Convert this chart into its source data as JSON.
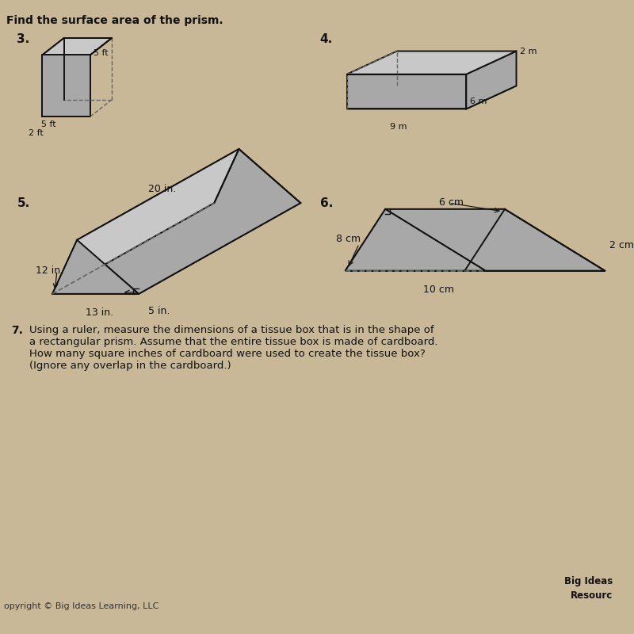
{
  "bg_color": "#c8b898",
  "title": "Find the surface area of the prism.",
  "prob3_label": "3.",
  "prob3_dims": [
    "5 ft",
    "5 ft",
    "2 ft"
  ],
  "prob4_label": "4.",
  "prob4_dims": [
    "2 m",
    "6 m",
    "9 m"
  ],
  "prob5_label": "5.",
  "prob5_dims": [
    "12 in.",
    "20 in.",
    "5 in.",
    "13 in."
  ],
  "prob6_label": "6.",
  "prob6_dims": [
    "8 cm",
    "6 cm",
    "2 cm",
    "10 cm"
  ],
  "prob7_label": "7.",
  "prob7_text": "Using a ruler, measure the dimensions of a tissue box that is in the shape of\na rectangular prism. Assume that the entire tissue box is made of cardboard.\nHow many square inches of cardboard were used to create the tissue box?\n(Ignore any overlap in the cardboard.)",
  "footer_left": "opyright © Big Ideas Learning, LLC",
  "footer_right": "Big Ideas\nResourc",
  "face_light": "#c8c8c8",
  "face_mid": "#a8a8a8",
  "face_dark": "#888888",
  "edge_color": "#111111",
  "dash_color": "#666666"
}
